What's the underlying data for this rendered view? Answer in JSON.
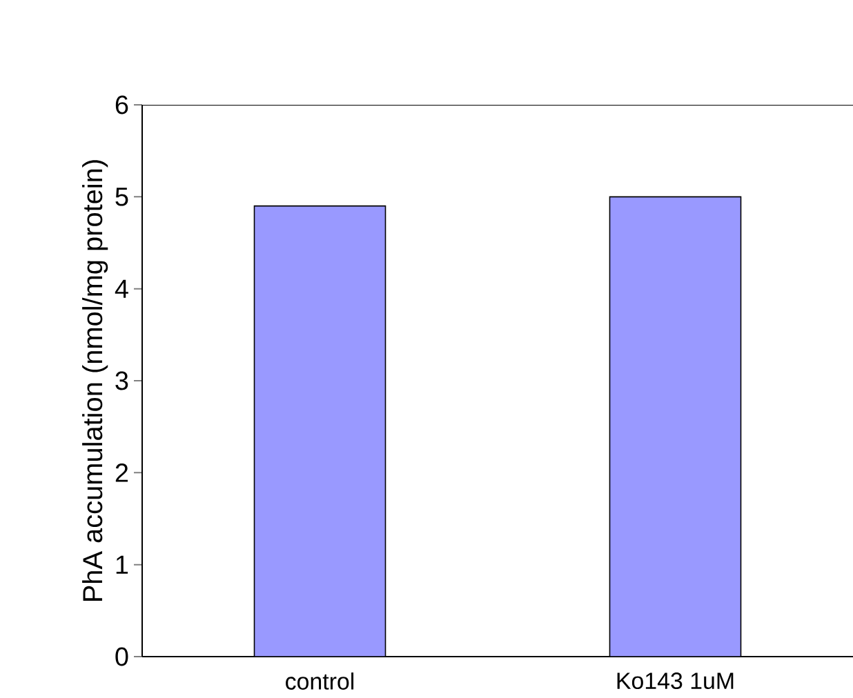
{
  "chart_data": {
    "type": "bar",
    "ylabel": "PhA accumulation (nmol/mg protein)",
    "categories": [
      "control",
      "Ko143 1uM"
    ],
    "values": [
      4.9,
      5.0
    ],
    "color": "#9999ff",
    "ylim": [
      0,
      6
    ],
    "yticks": [
      0,
      1,
      2,
      3,
      4,
      5,
      6
    ],
    "grid": false
  }
}
